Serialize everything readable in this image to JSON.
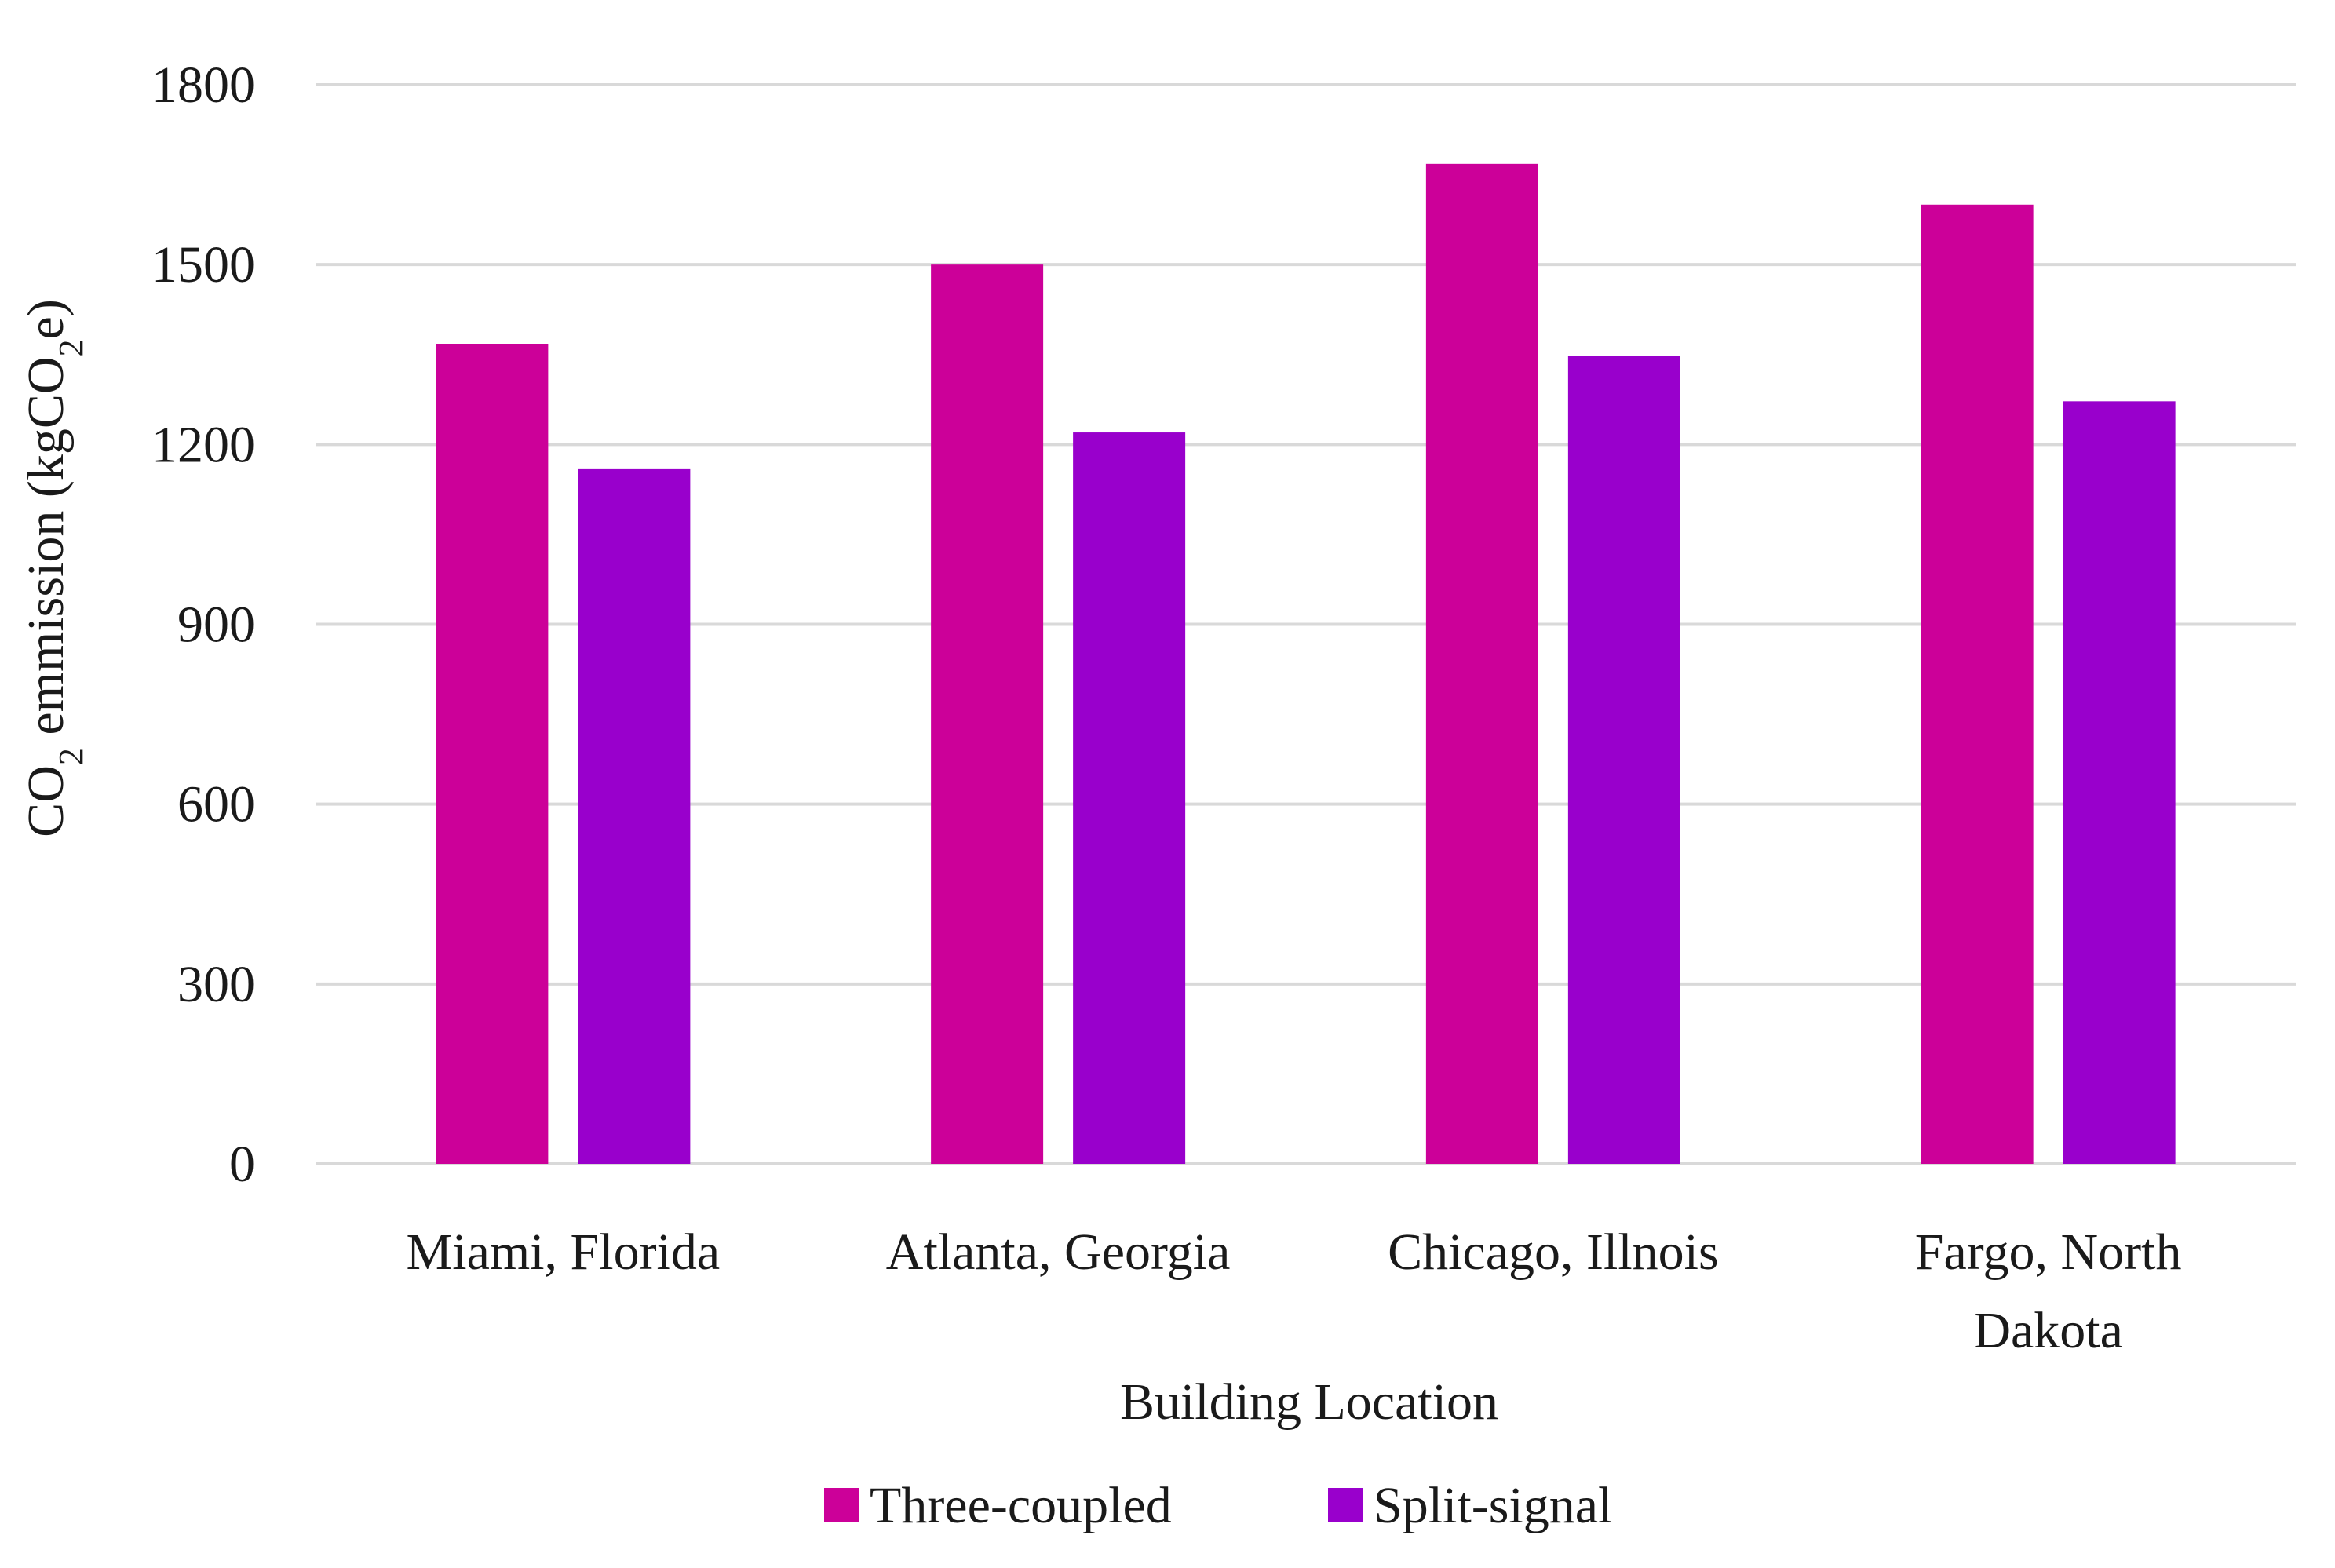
{
  "chart_data": {
    "type": "bar",
    "title": "",
    "categories": [
      [
        "Miami, Florida"
      ],
      [
        "Atlanta, Georgia"
      ],
      [
        "Chicago, Illnois"
      ],
      [
        "Fargo, North",
        "Dakota"
      ]
    ],
    "series": [
      {
        "name": "Three-coupled",
        "color": "#CC0099",
        "values": [
          1368,
          1500,
          1668,
          1600
        ]
      },
      {
        "name": "Split-signal",
        "color": "#9900CC",
        "values": [
          1160,
          1220,
          1348,
          1272
        ]
      }
    ],
    "xlabel": "Building Location",
    "ylabel": {
      "main1": "CO",
      "sub1": "2",
      "main2": " emmission (kgCO",
      "sub2": "2",
      "main3": "e)"
    },
    "ylim": [
      0,
      1800
    ],
    "yticks": [
      0,
      300,
      600,
      900,
      1200,
      1500,
      1800
    ],
    "grid": true,
    "legend_position": "bottom-center"
  }
}
